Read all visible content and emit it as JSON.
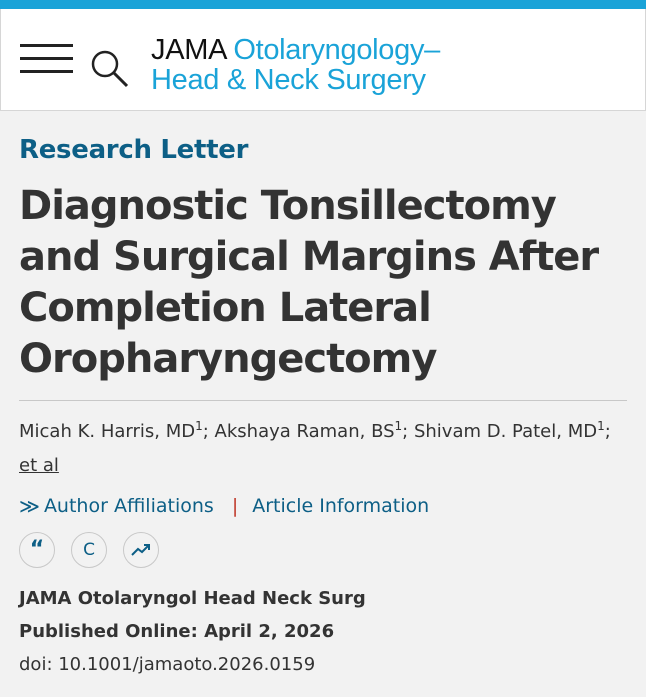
{
  "header": {
    "logo_line1_black": "JAMA",
    "logo_line1_blue": "Otolaryngology–",
    "logo_line2": "Head & Neck Surgery"
  },
  "article": {
    "section": "Research Letter",
    "title": "Diagnostic Tonsillectomy and Surgical Margins After Completion Lateral Oropharyngectomy",
    "authors": [
      {
        "name": "Micah K. Harris, MD",
        "sup": "1"
      },
      {
        "name": "Akshaya Raman, BS",
        "sup": "1"
      },
      {
        "name": "Shivam D. Patel, MD",
        "sup": "1"
      }
    ],
    "et_al": "et al",
    "links": {
      "chevron": "≫",
      "affiliations": "Author Affiliations",
      "separator": "|",
      "info": "Article Information"
    },
    "tools": {
      "cite_glyph": "“",
      "crossmark_glyph": "C"
    },
    "journal": "JAMA Otolaryngol Head Neck Surg",
    "published": "Published Online: April 2, 2026",
    "doi": "doi: 10.1001/jamaoto.2026.0159"
  },
  "colors": {
    "accent_blue": "#1aa3d8",
    "link_blue": "#0d5f86",
    "separator_red": "#c0392b"
  }
}
